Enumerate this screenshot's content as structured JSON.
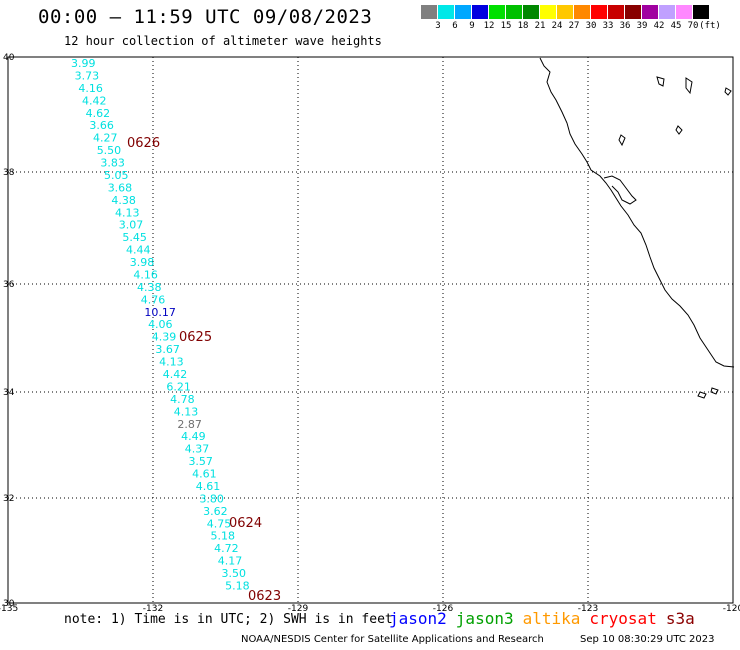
{
  "header": {
    "title": "00:00 – 11:59 UTC 09/08/2023",
    "subtitle": "12 hour collection of altimeter wave heights"
  },
  "legend": {
    "colors": [
      "#808080",
      "#00e8e8",
      "#00a8ff",
      "#0000e0",
      "#00e000",
      "#00c000",
      "#008800",
      "#ffff00",
      "#ffc800",
      "#ff8800",
      "#ff0000",
      "#c80000",
      "#880000",
      "#a000a0",
      "#c0a0ff",
      "#ff88ff",
      "#000000"
    ],
    "labels": [
      "3",
      "6",
      "9",
      "12",
      "15",
      "18",
      "21",
      "24",
      "27",
      "30",
      "33",
      "36",
      "39",
      "42",
      "45",
      "70",
      "(ft)"
    ]
  },
  "map": {
    "lon_range": [
      -135,
      -120
    ],
    "lat_range": [
      30,
      40
    ],
    "lon_ticks": [
      "-135",
      "-132",
      "-129",
      "-126",
      "-123",
      "-120"
    ],
    "lat_ticks": [
      "40",
      "38",
      "36",
      "34",
      "32",
      "30"
    ],
    "track_labels": [
      "0626",
      "0625",
      "0624",
      "0623"
    ],
    "wave_heights": [
      "3.99",
      "3.73",
      "4.16",
      "4.42",
      "4.62",
      "3.66",
      "4.27",
      "5.50",
      "3.83",
      "5.05",
      "3.68",
      "4.38",
      "4.13",
      "3.07",
      "5.45",
      "4.44",
      "3.98",
      "4.16",
      "4.38",
      "4.76",
      "10.17",
      "4.06",
      "4.39",
      "3.67",
      "4.13",
      "4.42",
      "6.21",
      "4.78",
      "4.13",
      "2.87",
      "4.49",
      "4.37",
      "3.57",
      "4.61",
      "4.61",
      "3.80",
      "3.62",
      "4.75",
      "5.18",
      "4.72",
      "4.17",
      "3.50",
      "5.18"
    ],
    "point_colors": {
      "default": "#00e0e0",
      "10.17": "#0000c0",
      "2.87": "#707070"
    }
  },
  "footer": {
    "note": "note:  1) Time is in UTC;  2) SWH is in feet",
    "satellites": [
      {
        "name": "jason2",
        "color": "#0000ff"
      },
      {
        "name": "jason3",
        "color": "#00a000"
      },
      {
        "name": "altika",
        "color": "#ff9900"
      },
      {
        "name": "cryosat",
        "color": "#ff0000"
      },
      {
        "name": "s3a",
        "color": "#8b0000"
      }
    ],
    "credit_org": "NOAA/NESDIS Center for Satellite Applications and Research",
    "credit_time": "Sep 10 08:30:29 UTC 2023"
  }
}
